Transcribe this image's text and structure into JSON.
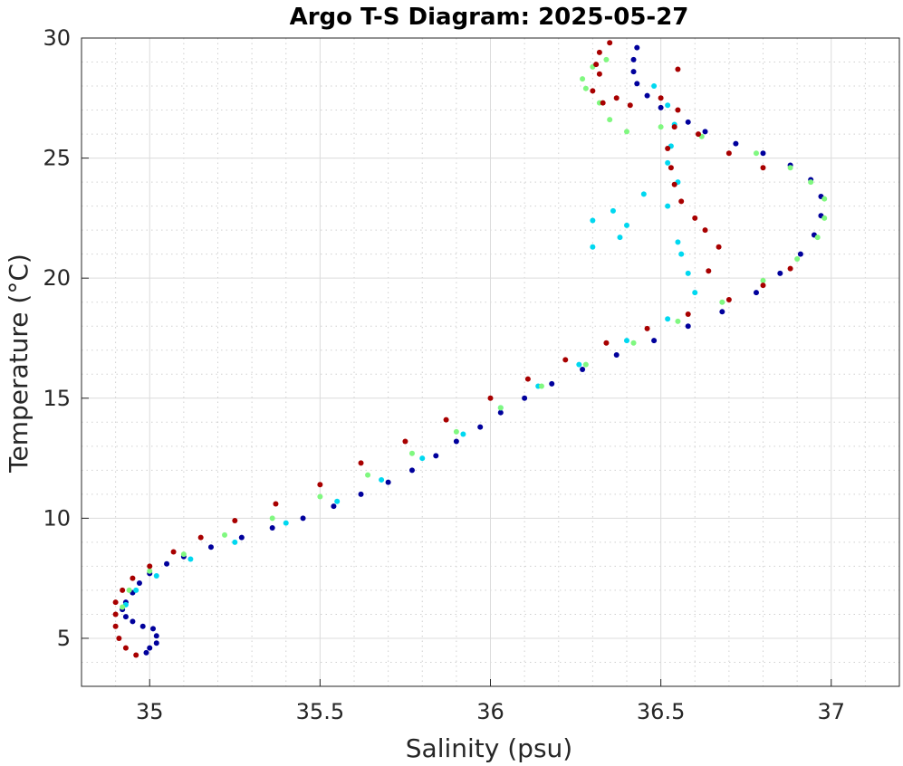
{
  "chart_data": {
    "type": "scatter",
    "title": "Argo T-S Diagram: 2025-05-27",
    "xlabel": "Salinity (psu)",
    "ylabel": "Temperature (°C)",
    "xlim": [
      34.8,
      37.2
    ],
    "ylim": [
      3,
      30
    ],
    "x_ticks": [
      35,
      35.5,
      36,
      36.5,
      37
    ],
    "x_tick_labels": [
      "35",
      "35.5",
      "36",
      "36.5",
      "37"
    ],
    "y_ticks": [
      5,
      10,
      15,
      20,
      25,
      30
    ],
    "y_tick_labels": [
      "5",
      "10",
      "15",
      "20",
      "25",
      "30"
    ],
    "grid": true,
    "minor_grid": true,
    "legend": "none",
    "series": [
      {
        "color": "#00009c",
        "points": [
          [
            34.99,
            4.4
          ],
          [
            35.0,
            4.6
          ],
          [
            35.02,
            4.8
          ],
          [
            35.02,
            5.1
          ],
          [
            35.01,
            5.4
          ],
          [
            34.98,
            5.5
          ],
          [
            34.95,
            5.7
          ],
          [
            34.93,
            5.9
          ],
          [
            34.92,
            6.2
          ],
          [
            34.93,
            6.5
          ],
          [
            34.95,
            6.9
          ],
          [
            34.97,
            7.3
          ],
          [
            35.0,
            7.7
          ],
          [
            35.05,
            8.1
          ],
          [
            35.1,
            8.4
          ],
          [
            35.18,
            8.8
          ],
          [
            35.27,
            9.2
          ],
          [
            35.36,
            9.6
          ],
          [
            35.45,
            10.0
          ],
          [
            35.54,
            10.5
          ],
          [
            35.62,
            11.0
          ],
          [
            35.7,
            11.5
          ],
          [
            35.77,
            12.0
          ],
          [
            35.84,
            12.6
          ],
          [
            35.9,
            13.2
          ],
          [
            35.97,
            13.8
          ],
          [
            36.03,
            14.4
          ],
          [
            36.1,
            15.0
          ],
          [
            36.18,
            15.6
          ],
          [
            36.27,
            16.2
          ],
          [
            36.37,
            16.8
          ],
          [
            36.48,
            17.4
          ],
          [
            36.58,
            18.0
          ],
          [
            36.68,
            18.6
          ],
          [
            36.78,
            19.4
          ],
          [
            36.85,
            20.2
          ],
          [
            36.91,
            21.0
          ],
          [
            36.95,
            21.8
          ],
          [
            36.97,
            22.6
          ],
          [
            36.97,
            23.4
          ],
          [
            36.94,
            24.1
          ],
          [
            36.88,
            24.7
          ],
          [
            36.8,
            25.2
          ],
          [
            36.72,
            25.6
          ],
          [
            36.63,
            26.1
          ],
          [
            36.58,
            26.5
          ],
          [
            36.5,
            27.1
          ],
          [
            36.46,
            27.6
          ],
          [
            36.43,
            28.1
          ],
          [
            36.42,
            28.6
          ],
          [
            36.42,
            29.1
          ],
          [
            36.43,
            29.6
          ]
        ]
      },
      {
        "color": "#00d8f0",
        "points": [
          [
            34.93,
            6.4
          ],
          [
            34.96,
            7.0
          ],
          [
            35.02,
            7.6
          ],
          [
            35.12,
            8.3
          ],
          [
            35.25,
            9.0
          ],
          [
            35.4,
            9.8
          ],
          [
            35.55,
            10.7
          ],
          [
            35.68,
            11.6
          ],
          [
            35.8,
            12.5
          ],
          [
            35.92,
            13.5
          ],
          [
            36.03,
            14.6
          ],
          [
            36.14,
            15.5
          ],
          [
            36.26,
            16.4
          ],
          [
            36.4,
            17.4
          ],
          [
            36.52,
            18.3
          ],
          [
            36.6,
            19.4
          ],
          [
            36.58,
            20.2
          ],
          [
            36.56,
            21.0
          ],
          [
            36.55,
            21.5
          ],
          [
            36.52,
            23.0
          ],
          [
            36.55,
            24.0
          ],
          [
            36.52,
            24.8
          ],
          [
            36.53,
            25.5
          ],
          [
            36.54,
            26.4
          ],
          [
            36.52,
            27.2
          ],
          [
            36.48,
            28.0
          ],
          [
            36.3,
            22.4
          ],
          [
            36.3,
            21.3
          ],
          [
            36.36,
            22.8
          ],
          [
            36.4,
            22.2
          ],
          [
            36.38,
            21.7
          ],
          [
            36.45,
            23.5
          ]
        ]
      },
      {
        "color": "#80f880",
        "points": [
          [
            34.92,
            6.3
          ],
          [
            34.94,
            7.0
          ],
          [
            35.0,
            7.8
          ],
          [
            35.1,
            8.5
          ],
          [
            35.22,
            9.3
          ],
          [
            35.36,
            10.0
          ],
          [
            35.5,
            10.9
          ],
          [
            35.64,
            11.8
          ],
          [
            35.77,
            12.7
          ],
          [
            35.9,
            13.6
          ],
          [
            36.03,
            14.6
          ],
          [
            36.15,
            15.5
          ],
          [
            36.28,
            16.4
          ],
          [
            36.42,
            17.3
          ],
          [
            36.55,
            18.2
          ],
          [
            36.68,
            19.0
          ],
          [
            36.8,
            19.9
          ],
          [
            36.9,
            20.8
          ],
          [
            36.96,
            21.7
          ],
          [
            36.98,
            22.5
          ],
          [
            36.98,
            23.3
          ],
          [
            36.94,
            24.0
          ],
          [
            36.88,
            24.6
          ],
          [
            36.78,
            25.2
          ],
          [
            36.62,
            25.9
          ],
          [
            36.5,
            26.3
          ],
          [
            36.4,
            26.1
          ],
          [
            36.35,
            26.6
          ],
          [
            36.32,
            27.3
          ],
          [
            36.28,
            27.9
          ],
          [
            36.27,
            28.3
          ],
          [
            36.3,
            28.8
          ],
          [
            36.34,
            29.1
          ]
        ]
      },
      {
        "color": "#a80000",
        "points": [
          [
            34.96,
            4.3
          ],
          [
            34.93,
            4.6
          ],
          [
            34.91,
            5.0
          ],
          [
            34.9,
            5.5
          ],
          [
            34.9,
            6.0
          ],
          [
            34.9,
            6.5
          ],
          [
            34.92,
            7.0
          ],
          [
            34.95,
            7.5
          ],
          [
            35.0,
            8.0
          ],
          [
            35.07,
            8.6
          ],
          [
            35.15,
            9.2
          ],
          [
            35.25,
            9.9
          ],
          [
            35.37,
            10.6
          ],
          [
            35.5,
            11.4
          ],
          [
            35.62,
            12.3
          ],
          [
            35.75,
            13.2
          ],
          [
            35.87,
            14.1
          ],
          [
            36.0,
            15.0
          ],
          [
            36.11,
            15.8
          ],
          [
            36.22,
            16.6
          ],
          [
            36.34,
            17.3
          ],
          [
            36.46,
            17.9
          ],
          [
            36.58,
            18.5
          ],
          [
            36.7,
            19.1
          ],
          [
            36.8,
            19.7
          ],
          [
            36.88,
            20.4
          ],
          [
            36.64,
            20.3
          ],
          [
            36.67,
            21.3
          ],
          [
            36.63,
            22.0
          ],
          [
            36.6,
            22.5
          ],
          [
            36.56,
            23.2
          ],
          [
            36.54,
            23.9
          ],
          [
            36.53,
            24.6
          ],
          [
            36.52,
            25.4
          ],
          [
            36.54,
            26.3
          ],
          [
            36.55,
            27.0
          ],
          [
            36.5,
            27.5
          ],
          [
            36.41,
            27.2
          ],
          [
            36.37,
            27.5
          ],
          [
            36.33,
            27.3
          ],
          [
            36.3,
            27.8
          ],
          [
            36.32,
            28.5
          ],
          [
            36.31,
            28.9
          ],
          [
            36.32,
            29.4
          ],
          [
            36.35,
            29.8
          ],
          [
            36.55,
            28.7
          ],
          [
            36.61,
            26.0
          ],
          [
            36.7,
            25.2
          ],
          [
            36.8,
            24.6
          ]
        ]
      }
    ]
  }
}
